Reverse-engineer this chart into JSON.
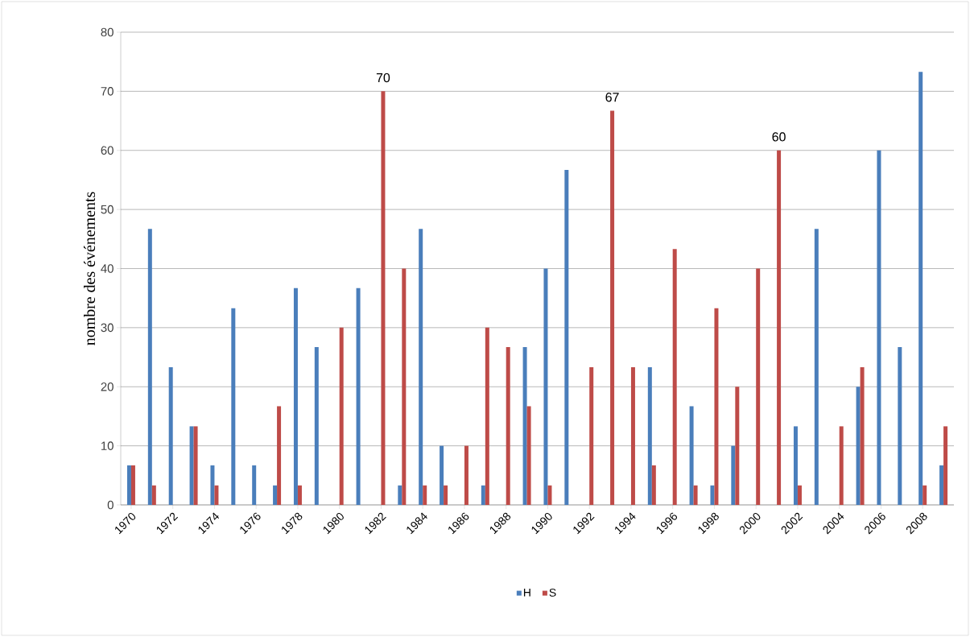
{
  "chart_data": {
    "type": "bar",
    "ylabel": "nombre des événements",
    "categories": [
      "1970",
      null,
      "1972",
      null,
      "1974",
      null,
      "1976",
      null,
      "1978",
      null,
      "1980",
      null,
      "1982",
      null,
      "1984",
      null,
      "1986",
      null,
      "1988",
      null,
      "1990",
      null,
      "1992",
      null,
      "1994",
      null,
      "1996",
      null,
      "1998",
      null,
      "2000",
      null,
      "2002",
      null,
      "2004",
      null,
      "2006",
      null,
      "2008",
      null
    ],
    "series": [
      {
        "name": "H",
        "color": "#4a7ebb",
        "values": [
          6.7,
          46.7,
          23.3,
          13.3,
          6.7,
          33.3,
          6.7,
          3.3,
          36.7,
          26.7,
          0,
          36.7,
          0,
          3.3,
          46.7,
          10,
          0,
          3.3,
          0,
          26.7,
          40,
          56.7,
          0,
          0,
          0,
          23.3,
          0,
          16.7,
          3.3,
          10,
          0,
          0,
          13.3,
          46.7,
          0,
          20,
          60,
          26.7,
          73.3,
          6.7
        ]
      },
      {
        "name": "S",
        "color": "#be4b48",
        "values": [
          6.7,
          3.3,
          0,
          13.3,
          3.3,
          0,
          0,
          16.7,
          3.3,
          0,
          30,
          0,
          70,
          40,
          3.3,
          3.3,
          10,
          30,
          26.7,
          16.7,
          3.3,
          0,
          23.3,
          66.7,
          23.3,
          6.7,
          43.3,
          3.3,
          33.3,
          20,
          40,
          60,
          3.3,
          0,
          13.3,
          23.3,
          0,
          0,
          3.3,
          13.3
        ],
        "value_labels": [
          null,
          null,
          null,
          null,
          null,
          null,
          null,
          null,
          null,
          null,
          null,
          null,
          "70",
          null,
          null,
          null,
          null,
          null,
          null,
          null,
          null,
          null,
          null,
          "67",
          null,
          null,
          null,
          null,
          null,
          null,
          null,
          "60",
          null,
          null,
          null,
          null,
          null,
          null,
          null,
          null
        ]
      }
    ],
    "ylim": [
      0,
      80
    ],
    "yticks": [
      0,
      10,
      20,
      30,
      40,
      50,
      60,
      70,
      80
    ],
    "grid": "y",
    "legend": "bottom"
  }
}
